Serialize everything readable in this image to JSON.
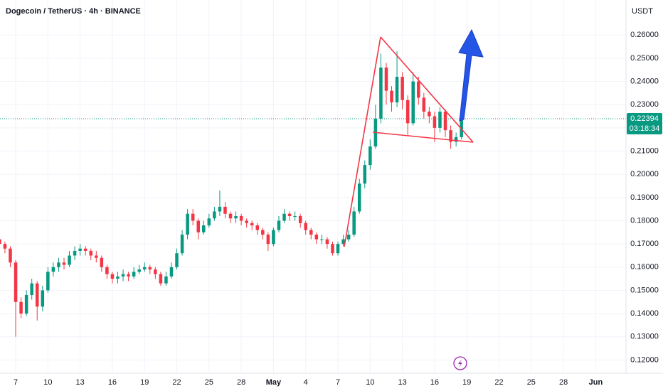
{
  "chart_data": {
    "type": "candlestick",
    "title": "Dogecoin / TetherUS · 4h · BINANCE",
    "y_axis_label": "USDT",
    "last_price": 0.22394,
    "countdown": "03:18:34",
    "up_color": "#089981",
    "down_color": "#f23645",
    "grid": true,
    "ylim": [
      0.1143,
      0.2751
    ],
    "yticks": [
      {
        "value": 0.12,
        "label": "0.12000"
      },
      {
        "value": 0.13,
        "label": "0.13000"
      },
      {
        "value": 0.14,
        "label": "0.14000"
      },
      {
        "value": 0.15,
        "label": "0.15000"
      },
      {
        "value": 0.16,
        "label": "0.16000"
      },
      {
        "value": 0.17,
        "label": "0.17000"
      },
      {
        "value": 0.18,
        "label": "0.18000"
      },
      {
        "value": 0.19,
        "label": "0.19000"
      },
      {
        "value": 0.2,
        "label": "0.20000"
      },
      {
        "value": 0.21,
        "label": "0.21000"
      },
      {
        "value": 0.22,
        "label": "0.22000"
      },
      {
        "value": 0.23,
        "label": "0.23000"
      },
      {
        "value": 0.24,
        "label": "0.24000"
      },
      {
        "value": 0.25,
        "label": "0.25000"
      },
      {
        "value": 0.26,
        "label": "0.26000"
      }
    ],
    "xlim": [
      -1.46,
      56.82
    ],
    "xticks": [
      {
        "value": 0,
        "label": "7"
      },
      {
        "value": 3,
        "label": "10"
      },
      {
        "value": 6,
        "label": "13"
      },
      {
        "value": 9,
        "label": "16"
      },
      {
        "value": 12,
        "label": "19"
      },
      {
        "value": 15,
        "label": "22"
      },
      {
        "value": 18,
        "label": "25"
      },
      {
        "value": 21,
        "label": "28"
      },
      {
        "value": 24,
        "label": "May"
      },
      {
        "value": 27,
        "label": "4"
      },
      {
        "value": 30,
        "label": "7"
      },
      {
        "value": 33,
        "label": "10"
      },
      {
        "value": 36,
        "label": "13"
      },
      {
        "value": 39,
        "label": "16"
      },
      {
        "value": 42,
        "label": "19"
      },
      {
        "value": 45,
        "label": "22"
      },
      {
        "value": 48,
        "label": "25"
      },
      {
        "value": 51,
        "label": "28"
      },
      {
        "value": 54,
        "label": "Jun"
      }
    ],
    "x": [
      -1.5,
      -1,
      -0.5,
      0,
      0.5,
      1,
      1.5,
      2,
      2.5,
      3,
      3.5,
      4,
      4.5,
      5,
      5.5,
      6,
      6.5,
      7,
      7.5,
      8,
      8.5,
      9,
      9.5,
      10,
      10.5,
      11,
      11.5,
      12,
      12.5,
      13,
      13.5,
      14,
      14.5,
      15,
      15.5,
      16,
      16.5,
      17,
      17.5,
      18,
      18.5,
      19,
      19.5,
      20,
      20.5,
      21,
      21.5,
      22,
      22.5,
      23,
      23.5,
      24,
      24.5,
      25,
      25.5,
      26,
      26.5,
      27,
      27.5,
      28,
      28.5,
      29,
      29.5,
      30,
      30.5,
      31,
      31.5,
      32,
      32.5,
      33,
      33.5,
      34,
      34.5,
      35,
      35.5,
      36,
      36.5,
      37,
      37.5,
      38,
      38.5,
      39,
      39.5,
      40,
      40.5,
      41,
      41.5
    ],
    "open": [
      0.172,
      0.17,
      0.168,
      0.162,
      0.145,
      0.14,
      0.148,
      0.153,
      0.143,
      0.15,
      0.158,
      0.16,
      0.162,
      0.161,
      0.165,
      0.167,
      0.168,
      0.167,
      0.165,
      0.164,
      0.16,
      0.157,
      0.155,
      0.156,
      0.157,
      0.156,
      0.158,
      0.159,
      0.16,
      0.159,
      0.157,
      0.153,
      0.156,
      0.16,
      0.166,
      0.174,
      0.183,
      0.18,
      0.175,
      0.178,
      0.181,
      0.184,
      0.186,
      0.183,
      0.181,
      0.182,
      0.18,
      0.179,
      0.178,
      0.176,
      0.174,
      0.17,
      0.176,
      0.18,
      0.183,
      0.182,
      0.182,
      0.179,
      0.176,
      0.174,
      0.172,
      0.172,
      0.17,
      0.166,
      0.17,
      0.172,
      0.174,
      0.184,
      0.196,
      0.204,
      0.212,
      0.224,
      0.246,
      0.236,
      0.231,
      0.242,
      0.232,
      0.222,
      0.24,
      0.233,
      0.227,
      0.225,
      0.22,
      0.227,
      0.219,
      0.214,
      0.216
    ],
    "high": [
      0.173,
      0.171,
      0.169,
      0.163,
      0.147,
      0.15,
      0.155,
      0.154,
      0.152,
      0.16,
      0.162,
      0.164,
      0.164,
      0.167,
      0.169,
      0.17,
      0.169,
      0.168,
      0.167,
      0.165,
      0.161,
      0.158,
      0.158,
      0.159,
      0.158,
      0.16,
      0.161,
      0.162,
      0.161,
      0.16,
      0.158,
      0.158,
      0.162,
      0.168,
      0.176,
      0.185,
      0.185,
      0.181,
      0.18,
      0.183,
      0.186,
      0.193,
      0.188,
      0.184,
      0.184,
      0.183,
      0.181,
      0.18,
      0.179,
      0.177,
      0.175,
      0.177,
      0.182,
      0.185,
      0.184,
      0.184,
      0.183,
      0.18,
      0.177,
      0.175,
      0.174,
      0.173,
      0.171,
      0.171,
      0.174,
      0.176,
      0.186,
      0.198,
      0.206,
      0.215,
      0.23,
      0.252,
      0.248,
      0.238,
      0.253,
      0.244,
      0.234,
      0.244,
      0.242,
      0.235,
      0.229,
      0.227,
      0.229,
      0.228,
      0.221,
      0.218,
      0.225
    ],
    "low": [
      0.169,
      0.166,
      0.16,
      0.13,
      0.138,
      0.139,
      0.146,
      0.137,
      0.141,
      0.149,
      0.156,
      0.158,
      0.159,
      0.16,
      0.163,
      0.165,
      0.165,
      0.163,
      0.162,
      0.158,
      0.155,
      0.153,
      0.153,
      0.154,
      0.154,
      0.155,
      0.157,
      0.158,
      0.157,
      0.155,
      0.152,
      0.152,
      0.155,
      0.159,
      0.165,
      0.172,
      0.178,
      0.172,
      0.174,
      0.177,
      0.18,
      0.182,
      0.181,
      0.179,
      0.179,
      0.178,
      0.177,
      0.176,
      0.174,
      0.172,
      0.167,
      0.169,
      0.175,
      0.179,
      0.18,
      0.18,
      0.177,
      0.174,
      0.172,
      0.17,
      0.17,
      0.168,
      0.165,
      0.165,
      0.169,
      0.171,
      0.173,
      0.183,
      0.194,
      0.202,
      0.211,
      0.222,
      0.23,
      0.227,
      0.229,
      0.228,
      0.217,
      0.221,
      0.23,
      0.224,
      0.222,
      0.214,
      0.218,
      0.216,
      0.211,
      0.212,
      0.215
    ],
    "close": [
      0.17,
      0.168,
      0.162,
      0.145,
      0.14,
      0.148,
      0.153,
      0.143,
      0.15,
      0.158,
      0.16,
      0.162,
      0.161,
      0.165,
      0.167,
      0.168,
      0.167,
      0.165,
      0.164,
      0.16,
      0.157,
      0.155,
      0.156,
      0.157,
      0.156,
      0.158,
      0.159,
      0.16,
      0.159,
      0.157,
      0.153,
      0.156,
      0.16,
      0.166,
      0.174,
      0.183,
      0.18,
      0.175,
      0.178,
      0.181,
      0.184,
      0.186,
      0.183,
      0.181,
      0.182,
      0.18,
      0.179,
      0.178,
      0.176,
      0.174,
      0.17,
      0.176,
      0.18,
      0.183,
      0.182,
      0.182,
      0.179,
      0.176,
      0.174,
      0.172,
      0.172,
      0.17,
      0.166,
      0.17,
      0.172,
      0.174,
      0.184,
      0.196,
      0.204,
      0.212,
      0.224,
      0.246,
      0.236,
      0.231,
      0.242,
      0.232,
      0.222,
      0.24,
      0.233,
      0.227,
      0.225,
      0.22,
      0.227,
      0.219,
      0.214,
      0.216,
      0.22394
    ]
  }
}
